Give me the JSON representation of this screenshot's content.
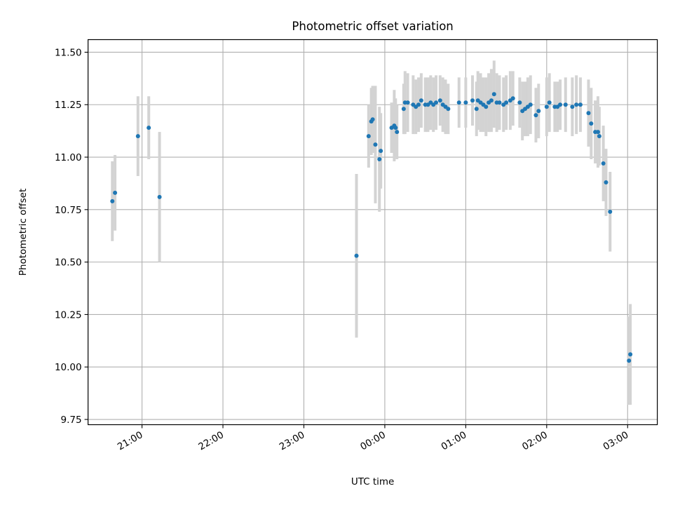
{
  "chart_data": {
    "type": "scatter",
    "title": "Photometric offset variation",
    "xlabel": "UTC time",
    "ylabel": "Photometric offset",
    "x_unit": "UTC time (HH:MM)",
    "xlim": [
      "20:20",
      "03:22"
    ],
    "ylim": [
      9.725,
      11.56
    ],
    "grid": true,
    "legend": "none",
    "x_ticks": [
      "21:00",
      "22:00",
      "23:00",
      "00:00",
      "01:00",
      "02:00",
      "03:00"
    ],
    "y_ticks": [
      "9.75",
      "10.00",
      "10.25",
      "10.50",
      "10.75",
      "11.00",
      "11.25",
      "11.50"
    ],
    "colors": {
      "point": "#1f77b4",
      "errorbar": "#d3d3d3",
      "grid": "#b0b0b0"
    },
    "series": [
      {
        "points": [
          [
            "20:38",
            10.79,
            0.19
          ],
          [
            "20:40",
            10.83,
            0.18
          ],
          [
            "20:57",
            11.1,
            0.19
          ],
          [
            "21:05",
            11.14,
            0.15
          ],
          [
            "21:13",
            10.81,
            0.31
          ],
          [
            "23:39",
            10.53,
            0.39
          ],
          [
            "23:48",
            11.1,
            0.15
          ],
          [
            "23:50",
            11.17,
            0.16
          ],
          [
            "23:51",
            11.18,
            0.16
          ],
          [
            "23:53",
            11.06,
            0.28
          ],
          [
            "23:56",
            10.99,
            0.25
          ],
          [
            "23:57",
            11.03,
            0.18
          ],
          [
            "00:05",
            11.14,
            0.12
          ],
          [
            "00:07",
            11.15,
            0.17
          ],
          [
            "00:08",
            11.14,
            0.14
          ],
          [
            "00:09",
            11.12,
            0.13
          ],
          [
            "00:14",
            11.23,
            0.12
          ],
          [
            "00:15",
            11.26,
            0.15
          ],
          [
            "00:17",
            11.26,
            0.14
          ],
          [
            "00:21",
            11.25,
            0.14
          ],
          [
            "00:23",
            11.24,
            0.13
          ],
          [
            "00:25",
            11.25,
            0.13
          ],
          [
            "00:27",
            11.27,
            0.13
          ],
          [
            "00:30",
            11.25,
            0.13
          ],
          [
            "00:32",
            11.25,
            0.13
          ],
          [
            "00:34",
            11.26,
            0.13
          ],
          [
            "00:36",
            11.25,
            0.13
          ],
          [
            "00:38",
            11.26,
            0.13
          ],
          [
            "00:41",
            11.27,
            0.12
          ],
          [
            "00:43",
            11.25,
            0.13
          ],
          [
            "00:45",
            11.24,
            0.13
          ],
          [
            "00:47",
            11.23,
            0.12
          ],
          [
            "00:55",
            11.26,
            0.12
          ],
          [
            "01:00",
            11.26,
            0.12
          ],
          [
            "01:05",
            11.27,
            0.12
          ],
          [
            "01:08",
            11.23,
            0.13
          ],
          [
            "01:09",
            11.27,
            0.14
          ],
          [
            "01:11",
            11.26,
            0.14
          ],
          [
            "01:13",
            11.25,
            0.13
          ],
          [
            "01:15",
            11.24,
            0.14
          ],
          [
            "01:17",
            11.26,
            0.14
          ],
          [
            "01:19",
            11.27,
            0.15
          ],
          [
            "01:21",
            11.3,
            0.16
          ],
          [
            "01:23",
            11.26,
            0.14
          ],
          [
            "01:25",
            11.26,
            0.13
          ],
          [
            "01:28",
            11.25,
            0.13
          ],
          [
            "01:30",
            11.26,
            0.13
          ],
          [
            "01:33",
            11.27,
            0.14
          ],
          [
            "01:35",
            11.28,
            0.13
          ],
          [
            "01:40",
            11.26,
            0.12
          ],
          [
            "01:42",
            11.22,
            0.14
          ],
          [
            "01:44",
            11.23,
            0.13
          ],
          [
            "01:46",
            11.24,
            0.14
          ],
          [
            "01:48",
            11.25,
            0.14
          ],
          [
            "01:52",
            11.2,
            0.13
          ],
          [
            "01:54",
            11.22,
            0.13
          ],
          [
            "02:00",
            11.24,
            0.14
          ],
          [
            "02:02",
            11.26,
            0.14
          ],
          [
            "02:06",
            11.24,
            0.12
          ],
          [
            "02:08",
            11.24,
            0.12
          ],
          [
            "02:10",
            11.25,
            0.12
          ],
          [
            "02:14",
            11.25,
            0.13
          ],
          [
            "02:19",
            11.24,
            0.14
          ],
          [
            "02:22",
            11.25,
            0.14
          ],
          [
            "02:25",
            11.25,
            0.13
          ],
          [
            "02:31",
            11.21,
            0.16
          ],
          [
            "02:33",
            11.16,
            0.17
          ],
          [
            "02:36",
            11.12,
            0.15
          ],
          [
            "02:38",
            11.12,
            0.17
          ],
          [
            "02:39",
            11.1,
            0.14
          ],
          [
            "02:42",
            10.97,
            0.18
          ],
          [
            "02:44",
            10.88,
            0.16
          ],
          [
            "02:47",
            10.74,
            0.19
          ],
          [
            "03:01",
            10.03,
            0.21
          ],
          [
            "03:02",
            10.06,
            0.24
          ]
        ]
      }
    ]
  }
}
